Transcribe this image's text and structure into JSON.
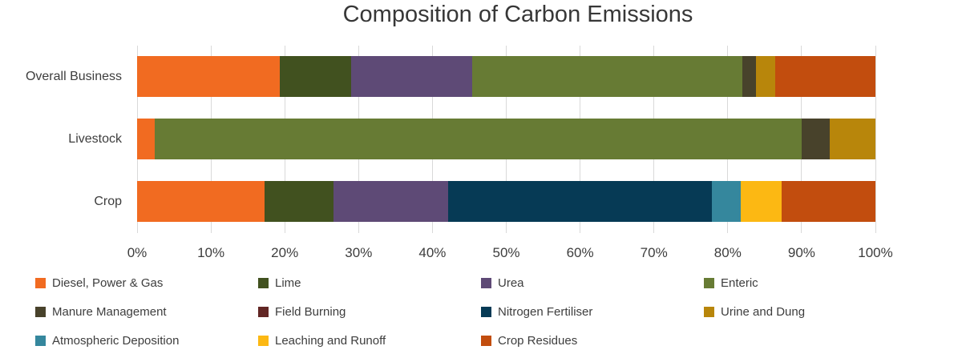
{
  "title": "Composition of Carbon Emissions",
  "colors": {
    "background": "#ffffff",
    "gridline": "#d9d9d9",
    "title_text": "#373737",
    "axis_text": "#3d3d3d"
  },
  "chart_data": {
    "type": "bar",
    "orientation": "horizontal",
    "stacked": true,
    "title": "Composition of Carbon Emissions",
    "categories": [
      "Overall Business",
      "Livestock",
      "Crop"
    ],
    "series": [
      {
        "name": "Diesel, Power & Gas",
        "color": "#f16b21",
        "values": [
          19.3,
          2.4,
          17.3
        ]
      },
      {
        "name": "Lime",
        "color": "#41511f",
        "values": [
          9.7,
          0,
          9.3
        ]
      },
      {
        "name": "Urea",
        "color": "#5e4a76",
        "values": [
          16.4,
          0,
          15.5
        ]
      },
      {
        "name": "Enteric",
        "color": "#677b34",
        "values": [
          36.6,
          87.6,
          0
        ]
      },
      {
        "name": "Manure Management",
        "color": "#48422b",
        "values": [
          1.8,
          3.8,
          0
        ]
      },
      {
        "name": "Field Burning",
        "color": "#622624",
        "values": [
          0,
          0,
          0
        ]
      },
      {
        "name": "Nitrogen Fertiliser",
        "color": "#063a55",
        "values": [
          0,
          0,
          35.8
        ]
      },
      {
        "name": "Urine and Dung",
        "color": "#b8860b",
        "values": [
          2.6,
          6.2,
          0
        ]
      },
      {
        "name": "Atmospheric Deposition",
        "color": "#35879d",
        "values": [
          0,
          0,
          3.9
        ]
      },
      {
        "name": "Leaching and Runoff",
        "color": "#fcb813",
        "values": [
          0,
          0,
          5.5
        ]
      },
      {
        "name": "Crop Residues",
        "color": "#c24d0e",
        "values": [
          13.6,
          0,
          12.7
        ]
      }
    ],
    "x_ticks": [
      "0%",
      "10%",
      "20%",
      "30%",
      "40%",
      "50%",
      "60%",
      "70%",
      "80%",
      "90%",
      "100%"
    ],
    "xlim": [
      0,
      100
    ],
    "grid": true,
    "legend_position": "bottom",
    "legend_columns": 4
  }
}
